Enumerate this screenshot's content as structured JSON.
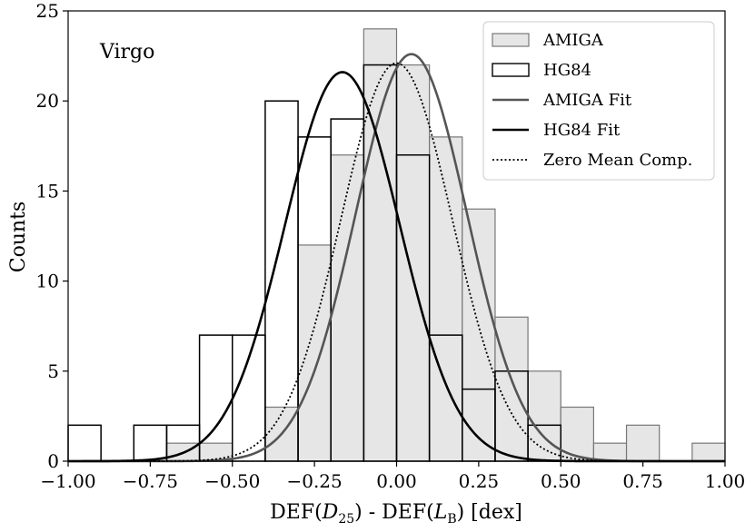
{
  "chart_data": {
    "type": "histogram",
    "region_label": "Virgo",
    "xlabel": {
      "prefix": "DEF(",
      "d": "D",
      "d_sub": "25",
      "middle": ") - DEF(",
      "l": "L",
      "l_sub": "B",
      "suffix": ") [dex]"
    },
    "ylabel": "Counts",
    "xlim": [
      -1.0,
      1.0
    ],
    "ylim": [
      0,
      25
    ],
    "bin_width": 0.1,
    "x_ticks": [
      -1.0,
      -0.75,
      -0.5,
      -0.25,
      0.0,
      0.25,
      0.5,
      0.75,
      1.0
    ],
    "x_tick_labels": [
      "−1.00",
      "−0.75",
      "−0.50",
      "−0.25",
      "0.00",
      "0.25",
      "0.50",
      "0.75",
      "1.00"
    ],
    "y_ticks": [
      0,
      5,
      10,
      15,
      20,
      25
    ],
    "y_tick_labels": [
      "0",
      "5",
      "10",
      "15",
      "20",
      "25"
    ],
    "histograms": [
      {
        "name": "AMIGA",
        "style": "filled",
        "fill": "#e6e6e6",
        "edge": "#777777",
        "bin_starts": [
          -0.7,
          -0.6,
          -0.5,
          -0.4,
          -0.3,
          -0.2,
          -0.1,
          0.0,
          0.1,
          0.2,
          0.3,
          0.4,
          0.5,
          0.6,
          0.7,
          0.8,
          0.9
        ],
        "counts": [
          1,
          1,
          0,
          3,
          12,
          17,
          24,
          22,
          18,
          14,
          8,
          5,
          3,
          1,
          2,
          0,
          1
        ]
      },
      {
        "name": "HG84",
        "style": "outline",
        "edge": "#000000",
        "bin_starts": [
          -1.0,
          -0.9,
          -0.8,
          -0.7,
          -0.6,
          -0.5,
          -0.4,
          -0.3,
          -0.2,
          -0.1,
          0.0,
          0.1,
          0.2,
          0.3,
          0.4,
          0.5
        ],
        "counts": [
          2,
          0,
          2,
          2,
          7,
          7,
          20,
          18,
          19,
          22,
          17,
          7,
          4,
          5,
          2,
          0
        ]
      }
    ],
    "curves": [
      {
        "name": "AMIGA Fit",
        "mean": 0.045,
        "sigma": 0.17,
        "amplitude": 22.6,
        "color": "#555555",
        "dash": ""
      },
      {
        "name": "HG84 Fit",
        "mean": -0.165,
        "sigma": 0.175,
        "amplitude": 21.6,
        "color": "#000000",
        "dash": ""
      },
      {
        "name": "Zero Mean Comp.",
        "mean": 0.0,
        "sigma": 0.17,
        "amplitude": 22.1,
        "color": "#000000",
        "dash": "2,2.5"
      }
    ],
    "legend": {
      "position": "top-right",
      "entries": [
        {
          "label": "AMIGA",
          "kind": "patch-filled"
        },
        {
          "label": "HG84",
          "kind": "patch-outline"
        },
        {
          "label": "AMIGA Fit",
          "kind": "line-gray"
        },
        {
          "label": "HG84 Fit",
          "kind": "line-black"
        },
        {
          "label": "Zero Mean Comp.",
          "kind": "line-dotted"
        }
      ]
    }
  }
}
